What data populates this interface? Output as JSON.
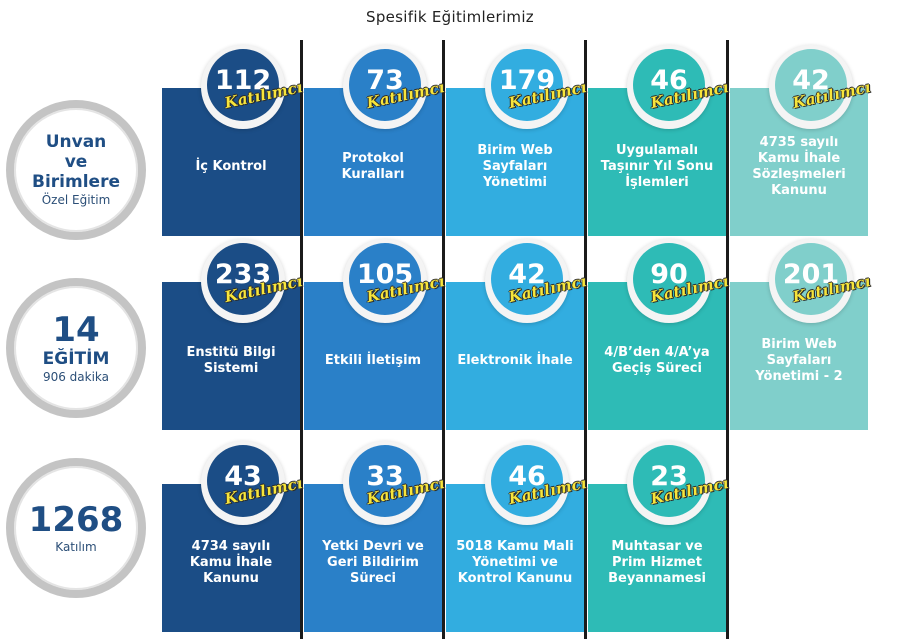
{
  "title": "Spesifik Eğitimlerimiz",
  "participant_label": "Katılımcı",
  "colors": [
    "#1b4d86",
    "#2a80c8",
    "#32ade0",
    "#2ebbb6",
    "#80cfcb"
  ],
  "left_panels": [
    {
      "lines": [
        "Unvan",
        "ve",
        "Birimlere"
      ],
      "sub": "Özel Eğitim"
    },
    {
      "lines": [
        "14",
        "EĞİTİM"
      ],
      "sub": "906 dakika"
    },
    {
      "lines": [
        "1268"
      ],
      "sub": "Katılım"
    }
  ],
  "rows": [
    [
      {
        "count": "112",
        "label": "İç Kontrol"
      },
      {
        "count": "73",
        "label": "Protokol Kuralları"
      },
      {
        "count": "179",
        "label": "Birim Web Sayfaları Yönetimi"
      },
      {
        "count": "46",
        "label": "Uygulamalı Taşınır Yıl Sonu İşlemleri"
      },
      {
        "count": "42",
        "label": "4735 sayılı Kamu İhale Sözleşmeleri Kanunu"
      }
    ],
    [
      {
        "count": "233",
        "label": "Enstitü Bilgi Sistemi"
      },
      {
        "count": "105",
        "label": "Etkili İletişim"
      },
      {
        "count": "42",
        "label": "Elektronik İhale"
      },
      {
        "count": "90",
        "label": "4/B’den 4/A’ya Geçiş Süreci"
      },
      {
        "count": "201",
        "label": "Birim Web Sayfaları Yönetimi - 2"
      }
    ],
    [
      {
        "count": "43",
        "label": "4734 sayılı Kamu İhale Kanunu"
      },
      {
        "count": "33",
        "label": "Yetki Devri ve Geri Bildirim Süreci"
      },
      {
        "count": "46",
        "label": "5018 Kamu Mali Yönetimi ve Kontrol Kanunu"
      },
      {
        "count": "23",
        "label": "Muhtasar ve Prim Hizmet Beyannamesi"
      }
    ]
  ]
}
